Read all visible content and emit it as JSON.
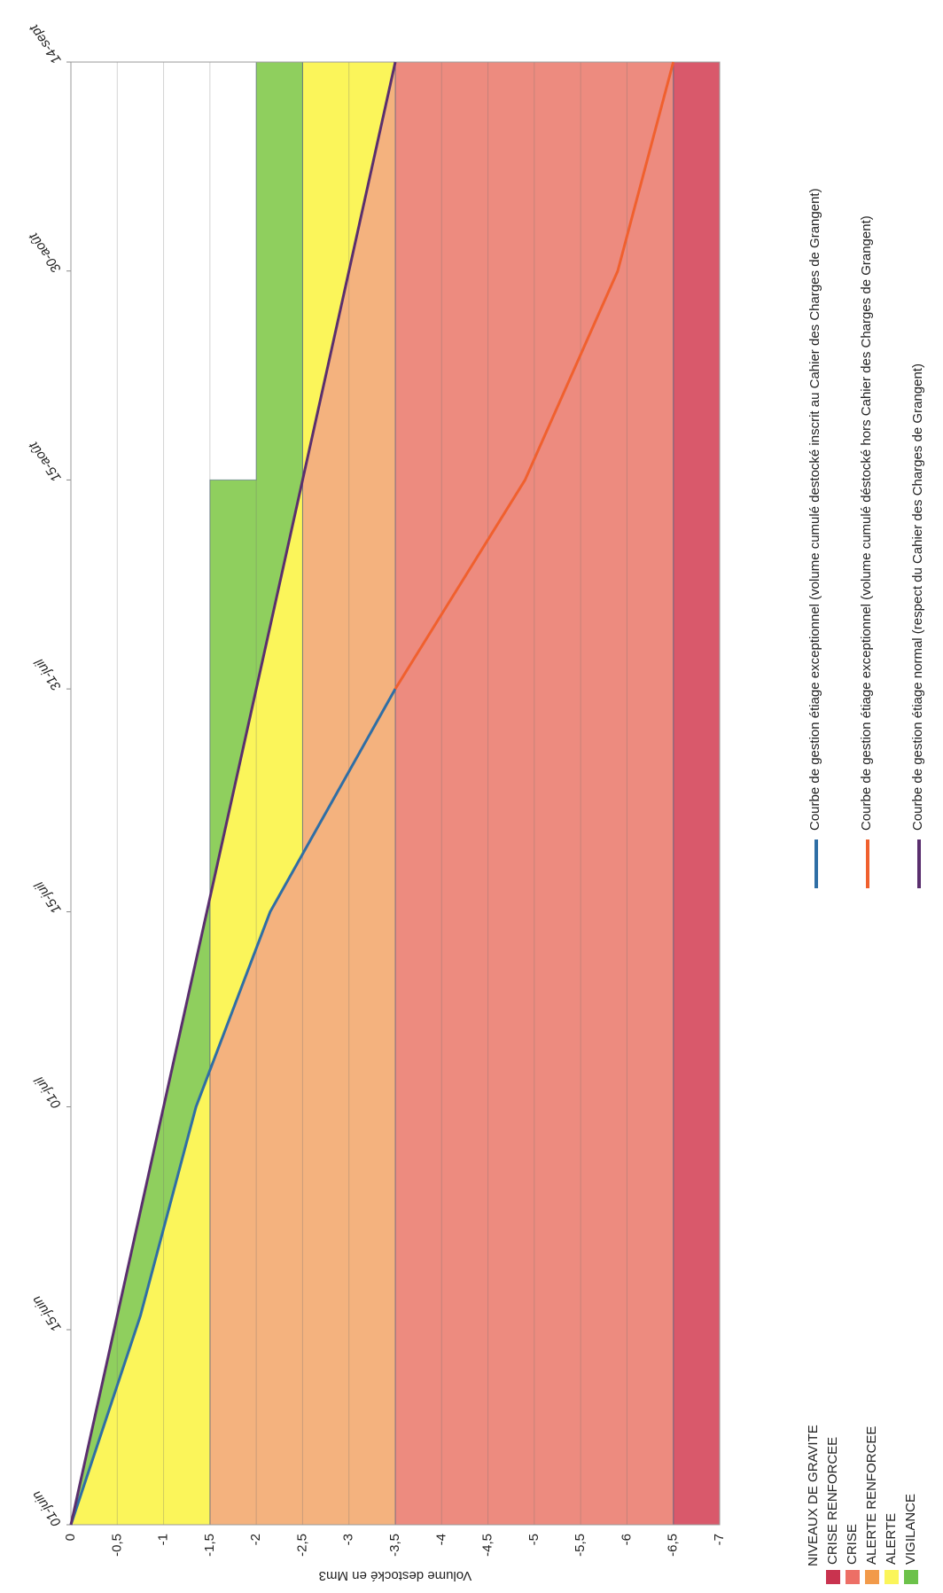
{
  "chart_data": {
    "type": "line",
    "ylabel": "Volume destocké en Mm3",
    "xlim": [
      0,
      105
    ],
    "xticks": [
      {
        "value": 0,
        "label": "01-juin"
      },
      {
        "value": 14,
        "label": "15-juin"
      },
      {
        "value": 30,
        "label": "01-juil"
      },
      {
        "value": 44,
        "label": "15-juil"
      },
      {
        "value": 60,
        "label": "31-juil"
      },
      {
        "value": 75,
        "label": "15-août"
      },
      {
        "value": 90,
        "label": "30-août"
      },
      {
        "value": 105,
        "label": "14-sept"
      }
    ],
    "ylim": [
      -7,
      0
    ],
    "yticks": [
      0,
      {
        "value": -0.5,
        "label": "-0,5"
      },
      -1,
      {
        "value": -1.5,
        "label": "-1,5"
      },
      -2,
      {
        "value": -2.5,
        "label": "-2,5"
      },
      -3,
      {
        "value": -3.5,
        "label": "-3,5"
      },
      -4,
      {
        "value": -4.5,
        "label": "-4,5"
      },
      -5,
      {
        "value": -5.5,
        "label": "-5,5"
      },
      -6,
      {
        "value": -6.5,
        "label": "-6,5"
      },
      -7
    ],
    "grid": true,
    "zones": [
      {
        "color": "#d9596b",
        "points": [
          [
            0,
            -6.5
          ],
          [
            105,
            -6.5
          ],
          [
            105,
            -7
          ],
          [
            0,
            -7
          ]
        ]
      },
      {
        "color": "#ed8b7f",
        "points": [
          [
            0,
            -3.5
          ],
          [
            105,
            -3.5
          ],
          [
            105,
            -6.5
          ],
          [
            0,
            -6.5
          ]
        ]
      },
      {
        "color": "#f4b27e",
        "points": [
          [
            0,
            -1.5
          ],
          [
            32.6,
            -1.5
          ],
          [
            44,
            -2.15
          ],
          [
            48.1,
            -2.5
          ],
          [
            75,
            -2.5
          ],
          [
            105,
            -3.5
          ],
          [
            0,
            -3.5
          ]
        ]
      },
      {
        "color": "#fbf55a",
        "points": [
          [
            0,
            0
          ],
          [
            15,
            -0.75
          ],
          [
            30,
            -1.35
          ],
          [
            32.6,
            -1.5
          ],
          [
            0,
            -1.5
          ]
        ]
      },
      {
        "color": "#fbf55a",
        "points": [
          [
            32.6,
            -1.5
          ],
          [
            45,
            -1.5
          ],
          [
            75,
            -2.5
          ],
          [
            48.1,
            -2.5
          ],
          [
            44,
            -2.15
          ]
        ]
      },
      {
        "color": "#fbf55a",
        "points": [
          [
            75,
            -2.5
          ],
          [
            105,
            -2.5
          ],
          [
            105,
            -3.5
          ]
        ]
      },
      {
        "color": "#8fcf5e",
        "points": [
          [
            0,
            0
          ],
          [
            45,
            -1.5
          ],
          [
            32.6,
            -1.5
          ],
          [
            30,
            -1.35
          ],
          [
            15,
            -0.75
          ]
        ]
      },
      {
        "color": "#8fcf5e",
        "points": [
          [
            45,
            -1.5
          ],
          [
            75,
            -1.5
          ],
          [
            75,
            -2
          ],
          [
            105,
            -2
          ],
          [
            105,
            -2.5
          ],
          [
            75,
            -2.5
          ]
        ]
      }
    ],
    "series": [
      {
        "name": "Courbe de gestion étiage exceptionnel (volume cumulé destocké inscrit au Cahier des Charges de Grangent)",
        "color": "#2f6ea5",
        "x": [
          0,
          15,
          30,
          44,
          60
        ],
        "values": [
          0,
          -0.75,
          -1.35,
          -2.15,
          -3.5
        ]
      },
      {
        "name": "Courbe de gestion étiage exceptionnel (volume cumulé déstocké hors Cahier des Charges de Grangent)",
        "color": "#f0602e",
        "x": [
          60,
          75,
          90,
          105
        ],
        "values": [
          -3.5,
          -4.9,
          -5.9,
          -6.5
        ]
      },
      {
        "name": "Courbe de gestion étiage normal (respect du Cahier des Charges de Grangent)",
        "color": "#5a2f6e",
        "x": [
          0,
          105
        ],
        "values": [
          0,
          -3.5
        ]
      }
    ],
    "levels_legend": {
      "title": "NIVEAUX DE GRAVITE",
      "items": [
        {
          "name": "CRISE RENFORCEE",
          "color": "#c9334f"
        },
        {
          "name": "CRISE",
          "color": "#ed6f66"
        },
        {
          "name": "ALERTE RENFORCEE",
          "color": "#f29a4a"
        },
        {
          "name": "ALERTE",
          "color": "#fbf55a"
        },
        {
          "name": "VIGILANCE",
          "color": "#6cc24a"
        }
      ]
    }
  }
}
